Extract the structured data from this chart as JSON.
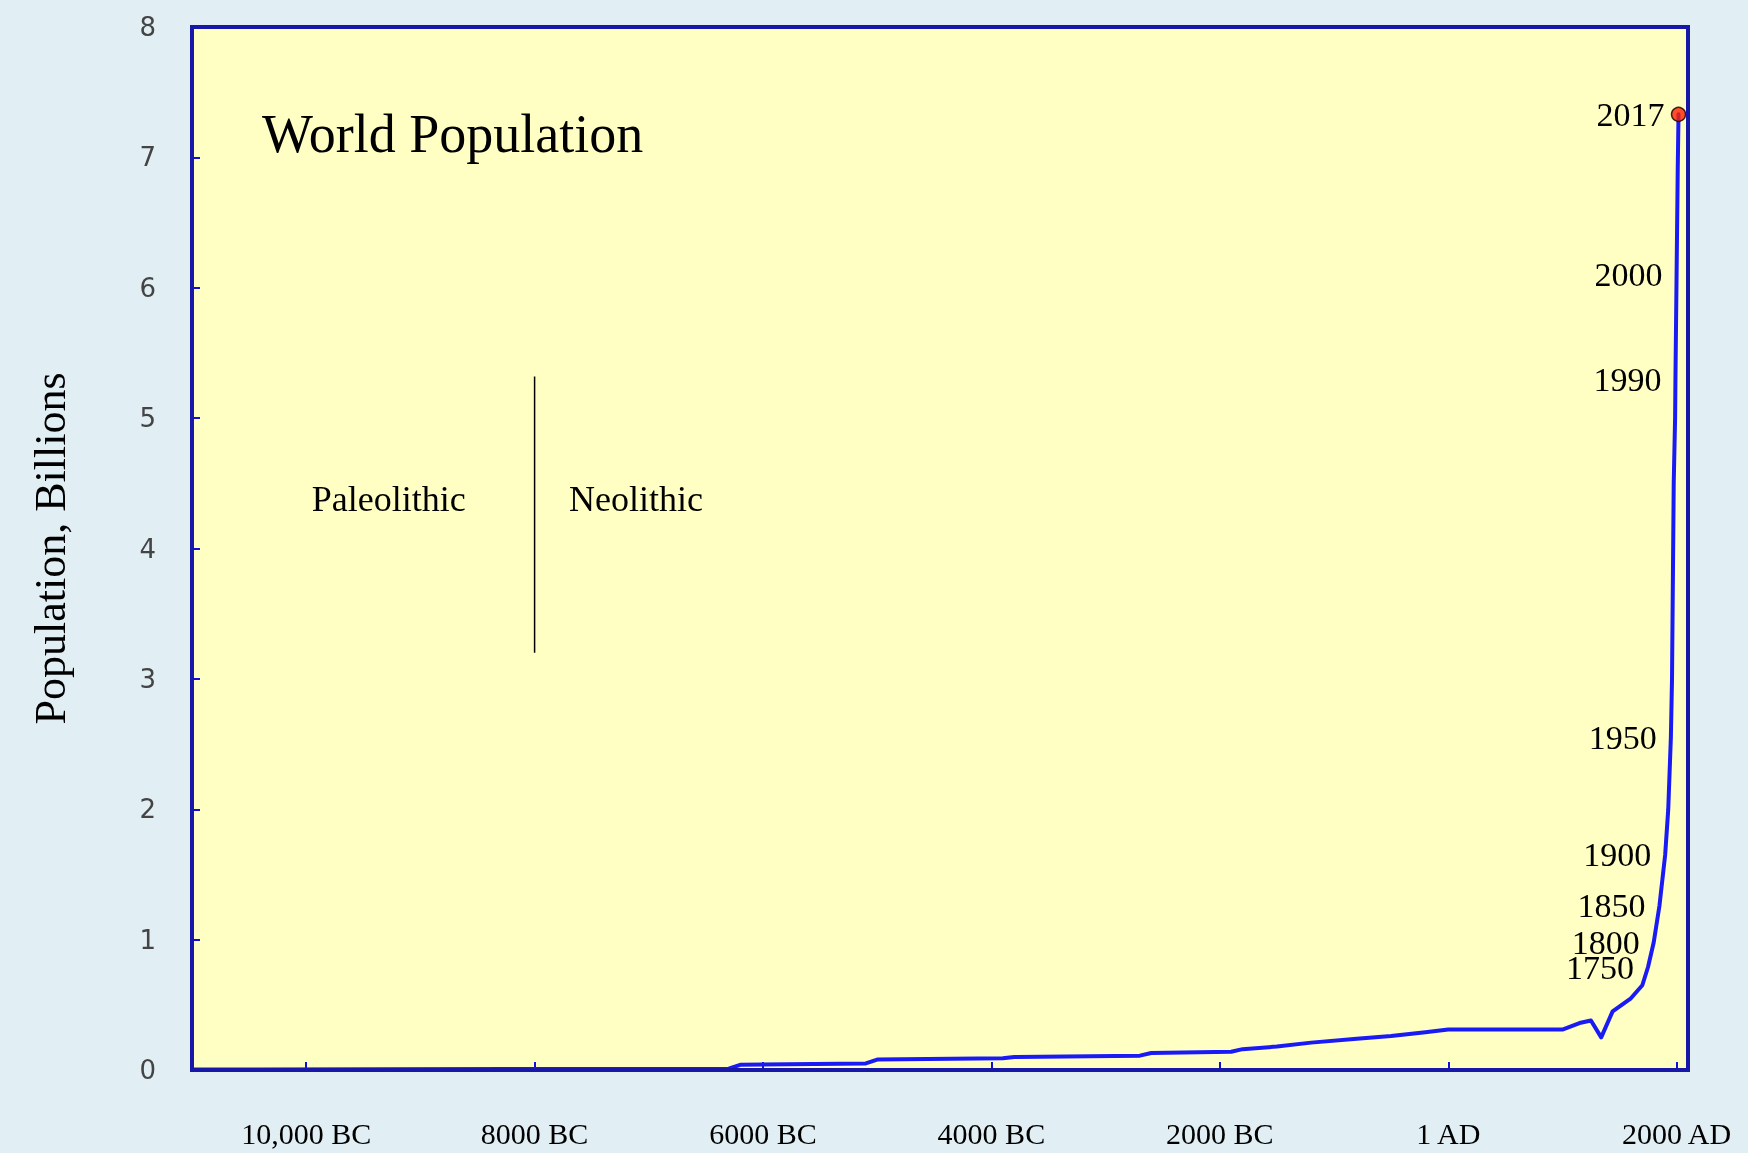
{
  "chart_data": {
    "type": "line",
    "title": "World Population",
    "ylabel": "Population, Billions",
    "x": [
      -11000,
      -6300,
      -6200,
      -5100,
      -5000,
      -3900,
      -3800,
      -2700,
      -2600,
      -1900,
      -1800,
      -1500,
      -1200,
      -800,
      -500,
      -200,
      0,
      1000,
      1150,
      1250,
      1340,
      1440,
      1600,
      1700,
      1750,
      1800,
      1850,
      1900,
      1927,
      1950,
      1960,
      1975,
      1987,
      1990,
      2000,
      2010,
      2017
    ],
    "series": [
      {
        "color": "#1a1af5",
        "values": [
          0.004,
          0.01,
          0.04,
          0.05,
          0.08,
          0.09,
          0.1,
          0.11,
          0.13,
          0.14,
          0.16,
          0.18,
          0.21,
          0.24,
          0.26,
          0.29,
          0.31,
          0.31,
          0.36,
          0.38,
          0.25,
          0.45,
          0.55,
          0.65,
          0.79,
          0.98,
          1.26,
          1.65,
          2.0,
          2.55,
          3.0,
          4.5,
          5.0,
          5.3,
          6.1,
          6.9,
          7.33
        ]
      },
      {
        "type": "scatter",
        "marker": "circle",
        "color": "#ff2200",
        "x": [
          2017
        ],
        "values": [
          7.33
        ]
      }
    ],
    "marker": "none",
    "line_style": "solid",
    "xlim": [
      -11000,
      2100
    ],
    "xticks": [
      {
        "value": -10000,
        "label": "10,000 BC"
      },
      {
        "value": -8000,
        "label": "8000 BC"
      },
      {
        "value": -6000,
        "label": "6000 BC"
      },
      {
        "value": -4000,
        "label": "4000 BC"
      },
      {
        "value": -2000,
        "label": "2000 BC"
      },
      {
        "value": 1,
        "label": "1 AD"
      },
      {
        "value": 2000,
        "label": "2000 AD"
      }
    ],
    "ylim": [
      0,
      8
    ],
    "yticks": [
      0,
      1,
      2,
      3,
      4,
      5,
      6,
      7,
      8
    ],
    "grid": false,
    "ref_lines": [
      {
        "axis": "x",
        "value": -8000,
        "color": "#000000"
      }
    ],
    "annotations": [
      "Paleolithic",
      "Neolithic",
      {
        "text": "2017",
        "x": 2017,
        "y": 7.33
      },
      {
        "text": "2000",
        "x": 2000,
        "y": 6.1
      },
      {
        "text": "1990",
        "x": 1990,
        "y": 5.3
      },
      {
        "text": "1950",
        "x": 1950,
        "y": 2.55
      },
      {
        "text": "1900",
        "x": 1900,
        "y": 1.65
      },
      {
        "text": "1850",
        "x": 1850,
        "y": 1.26
      },
      {
        "text": "1800",
        "x": 1800,
        "y": 0.98
      },
      {
        "text": "1750",
        "x": 1750,
        "y": 0.79
      }
    ]
  }
}
